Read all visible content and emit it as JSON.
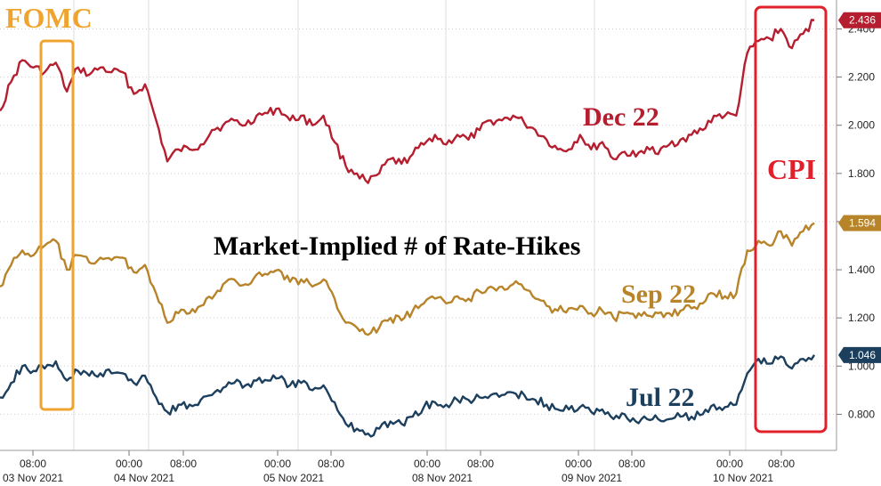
{
  "chart_data": {
    "type": "line",
    "title": "Market-Implied # of Rate-Hikes",
    "yticks": [
      "0.800",
      "1.000",
      "1.200",
      "1.400",
      "1.600",
      "1.800",
      "2.000",
      "2.200",
      "2.400"
    ],
    "ylim": [
      0.65,
      2.52
    ],
    "grid": true,
    "axis_position": "right",
    "x_time_labels": [
      "08:00",
      "00:00",
      "08:00",
      "00:00",
      "08:00",
      "00:00",
      "08:00",
      "00:00",
      "08:00",
      "00:00",
      "08:00"
    ],
    "x_date_labels": [
      "03 Nov 2021",
      "04 Nov 2021",
      "05 Nov 2021",
      "08 Nov 2021",
      "09 Nov 2021",
      "10 Nov 2021"
    ],
    "series": [
      {
        "name": "Dec 22",
        "color": "#b51e2f",
        "last_value": "2.436",
        "values": [
          2.06,
          2.18,
          2.27,
          2.24,
          2.22,
          2.26,
          2.14,
          2.24,
          2.21,
          2.24,
          2.22,
          2.22,
          2.13,
          2.17,
          2.02,
          1.85,
          1.9,
          1.9,
          1.92,
          1.98,
          2.0,
          2.02,
          2.0,
          2.04,
          2.05,
          2.07,
          2.02,
          2.04,
          2.0,
          2.04,
          1.93,
          1.83,
          1.8,
          1.76,
          1.8,
          1.86,
          1.84,
          1.88,
          1.92,
          1.96,
          1.92,
          1.96,
          1.94,
          1.98,
          2.02,
          2.02,
          2.04,
          2.01,
          1.98,
          1.94,
          1.9,
          1.9,
          1.96,
          1.9,
          1.93,
          1.86,
          1.89,
          1.87,
          1.91,
          1.88,
          1.92,
          1.94,
          1.96,
          1.98,
          2.04,
          2.04,
          2.04,
          2.3,
          2.35,
          2.36,
          2.4,
          2.32,
          2.38,
          2.436
        ]
      },
      {
        "name": "Sep 22",
        "color": "#b7842a",
        "last_value": "1.594",
        "values": [
          1.33,
          1.42,
          1.48,
          1.46,
          1.5,
          1.52,
          1.4,
          1.46,
          1.43,
          1.45,
          1.44,
          1.45,
          1.39,
          1.42,
          1.3,
          1.18,
          1.22,
          1.22,
          1.25,
          1.28,
          1.34,
          1.36,
          1.34,
          1.38,
          1.38,
          1.4,
          1.35,
          1.36,
          1.33,
          1.36,
          1.28,
          1.18,
          1.16,
          1.13,
          1.16,
          1.2,
          1.19,
          1.23,
          1.26,
          1.28,
          1.26,
          1.29,
          1.28,
          1.31,
          1.33,
          1.33,
          1.34,
          1.32,
          1.28,
          1.25,
          1.23,
          1.24,
          1.25,
          1.22,
          1.23,
          1.2,
          1.22,
          1.2,
          1.21,
          1.22,
          1.22,
          1.23,
          1.24,
          1.26,
          1.3,
          1.29,
          1.3,
          1.48,
          1.52,
          1.5,
          1.56,
          1.5,
          1.56,
          1.594
        ]
      },
      {
        "name": "Jul 22",
        "color": "#1d3f5e",
        "last_value": "1.046",
        "values": [
          0.87,
          0.93,
          1.0,
          0.98,
          0.99,
          1.02,
          0.94,
          0.98,
          0.96,
          0.97,
          0.97,
          0.97,
          0.93,
          0.96,
          0.87,
          0.81,
          0.84,
          0.84,
          0.86,
          0.88,
          0.91,
          0.93,
          0.92,
          0.94,
          0.94,
          0.95,
          0.92,
          0.93,
          0.9,
          0.92,
          0.85,
          0.76,
          0.74,
          0.72,
          0.74,
          0.77,
          0.76,
          0.79,
          0.83,
          0.85,
          0.84,
          0.86,
          0.86,
          0.87,
          0.88,
          0.88,
          0.89,
          0.88,
          0.86,
          0.84,
          0.82,
          0.82,
          0.83,
          0.81,
          0.82,
          0.78,
          0.8,
          0.77,
          0.78,
          0.78,
          0.78,
          0.79,
          0.79,
          0.8,
          0.84,
          0.83,
          0.84,
          0.97,
          1.03,
          1.01,
          1.04,
          0.99,
          1.03,
          1.046
        ]
      }
    ],
    "annotations": [
      {
        "text": "FOMC",
        "color": "#f0a430"
      },
      {
        "text": "CPI",
        "color": "#e0202a"
      }
    ]
  }
}
